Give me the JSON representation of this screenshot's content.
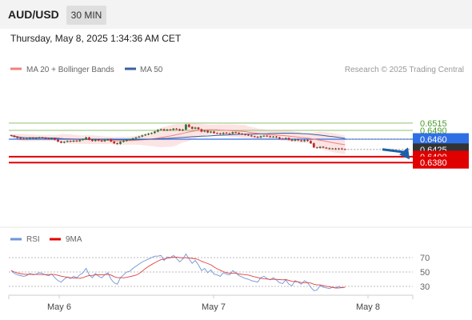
{
  "header": {
    "pair": "AUD/USD",
    "timeframe": "30 MIN",
    "datetime": "Thursday, May 8, 2025 1:34:36 AM CET"
  },
  "legend": {
    "ma20": "MA 20 + Bollinger Bands",
    "ma50": "MA 50",
    "copyright": "Research © 2025 Trading Central"
  },
  "rsi_legend": {
    "rsi": "RSI",
    "ma": "9MA"
  },
  "colors": {
    "candle_up": "#2e7d32",
    "candle_down": "#c62828",
    "bollinger_fill": "#fde4e4",
    "ma20": "#f08080",
    "ma50": "#3b5f9e",
    "pivot_blue": "#2f6fe4",
    "support_red": "#e00000",
    "resistance_green": "#8fc070",
    "current_price_tag": "#333333",
    "arrow": "#1f5fa8",
    "rsi_line": "#6f94d8",
    "rsi_ma": "#e04040"
  },
  "chart_data": [
    {
      "type": "candlestick",
      "title": "AUD/USD 30 MIN",
      "x_ticks": [
        "May 6",
        "May 7",
        "May 8"
      ],
      "ylim": [
        0.6375,
        0.652
      ],
      "levels": [
        {
          "label": "0.6515",
          "value": 0.6515,
          "kind": "resistance"
        },
        {
          "label": "0.6490",
          "value": 0.649,
          "kind": "resistance"
        },
        {
          "label": "0.6460",
          "value": 0.646,
          "kind": "pivot"
        },
        {
          "label": "0.6425",
          "value": 0.6425,
          "kind": "last_price"
        },
        {
          "label": "0.6400",
          "value": 0.64,
          "kind": "support"
        },
        {
          "label": "0.6380",
          "value": 0.638,
          "kind": "support"
        }
      ],
      "projection": {
        "from": 0.6425,
        "to": 0.638
      },
      "series": [
        {
          "name": "Close",
          "values": [
            0.6472,
            0.6468,
            0.6464,
            0.6462,
            0.6461,
            0.6462,
            0.6465,
            0.6463,
            0.6464,
            0.6466,
            0.6465,
            0.6462,
            0.6461,
            0.6463,
            0.6458,
            0.6452,
            0.6448,
            0.6451,
            0.6454,
            0.6452,
            0.6455,
            0.6453,
            0.6457,
            0.646,
            0.6466,
            0.6458,
            0.6454,
            0.6459,
            0.6455,
            0.6453,
            0.6457,
            0.646,
            0.6452,
            0.6446,
            0.6444,
            0.6451,
            0.6454,
            0.6458,
            0.6459,
            0.6463,
            0.6466,
            0.6469,
            0.6473,
            0.6476,
            0.6479,
            0.6481,
            0.6486,
            0.6492,
            0.6494,
            0.649,
            0.6493,
            0.6492,
            0.6496,
            0.6494,
            0.649,
            0.6493,
            0.651,
            0.6502,
            0.6496,
            0.65,
            0.6494,
            0.6486,
            0.6489,
            0.6483,
            0.6486,
            0.6481,
            0.648,
            0.6478,
            0.6482,
            0.648,
            0.6479,
            0.6484,
            0.6482,
            0.6479,
            0.6477,
            0.6475,
            0.6473,
            0.647,
            0.6468,
            0.6466,
            0.647,
            0.6472,
            0.647,
            0.6467,
            0.6469,
            0.6466,
            0.6462,
            0.6461,
            0.6464,
            0.6458,
            0.6455,
            0.6459,
            0.6456,
            0.6453,
            0.6457,
            0.6454,
            0.6446,
            0.6432,
            0.643,
            0.6434,
            0.6431,
            0.6429,
            0.6427,
            0.6428,
            0.6426,
            0.6428,
            0.6426,
            0.6425
          ]
        },
        {
          "name": "MA 20",
          "kind": "moving_average"
        },
        {
          "name": "MA 50",
          "kind": "moving_average"
        }
      ]
    },
    {
      "type": "line",
      "title": "RSI",
      "ylim": [
        20,
        80
      ],
      "y_ticks": [
        70,
        50,
        30
      ],
      "series": [
        {
          "name": "RSI",
          "values": [
            52,
            48,
            46,
            45,
            44,
            45,
            48,
            46,
            47,
            49,
            48,
            46,
            45,
            47,
            42,
            38,
            36,
            40,
            43,
            41,
            44,
            42,
            46,
            49,
            55,
            46,
            42,
            48,
            44,
            42,
            46,
            49,
            40,
            35,
            33,
            42,
            46,
            50,
            51,
            55,
            58,
            61,
            64,
            66,
            68,
            70,
            72,
            72,
            73,
            66,
            71,
            70,
            73,
            69,
            64,
            68,
            75,
            68,
            62,
            66,
            60,
            52,
            55,
            49,
            53,
            47,
            46,
            44,
            49,
            47,
            46,
            52,
            49,
            45,
            43,
            41,
            40,
            38,
            37,
            36,
            42,
            44,
            41,
            39,
            42,
            39,
            35,
            34,
            39,
            33,
            31,
            38,
            36,
            33,
            38,
            35,
            29,
            24,
            25,
            31,
            29,
            28,
            27,
            29,
            28,
            30,
            28,
            29
          ]
        },
        {
          "name": "9MA",
          "kind": "moving_average"
        }
      ]
    }
  ]
}
